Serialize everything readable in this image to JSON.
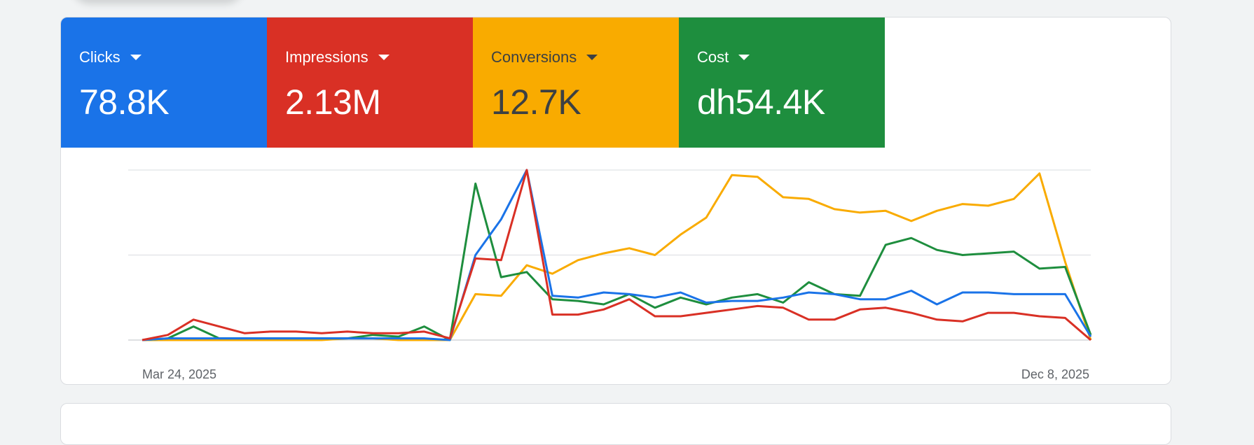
{
  "metrics": [
    {
      "label": "Clicks",
      "value": "78.8K",
      "color": "#1a73e8"
    },
    {
      "label": "Impressions",
      "value": "2.13M",
      "color": "#d93025"
    },
    {
      "label": "Conversions",
      "value": "12.7K",
      "color": "#f9ab00"
    },
    {
      "label": "Cost",
      "value": "dh54.4K",
      "color": "#1e8e3e"
    }
  ],
  "x_axis": {
    "start_label": "Mar 24, 2025",
    "end_label": "Dec 8, 2025"
  },
  "chart_data": {
    "type": "line",
    "xlabel": "",
    "ylabel": "",
    "grid": true,
    "y_scale": "normalized per series (no y-axis labels shown)",
    "x": [
      "2025-03-24",
      "2025-03-31",
      "2025-04-07",
      "2025-04-14",
      "2025-04-21",
      "2025-04-28",
      "2025-05-05",
      "2025-05-12",
      "2025-05-19",
      "2025-05-26",
      "2025-06-02",
      "2025-06-09",
      "2025-06-16",
      "2025-06-23",
      "2025-06-30",
      "2025-07-07",
      "2025-07-14",
      "2025-07-21",
      "2025-07-28",
      "2025-08-04",
      "2025-08-11",
      "2025-08-18",
      "2025-08-25",
      "2025-09-01",
      "2025-09-08",
      "2025-09-15",
      "2025-09-22",
      "2025-09-29",
      "2025-10-06",
      "2025-10-13",
      "2025-10-20",
      "2025-10-27",
      "2025-11-03",
      "2025-11-10",
      "2025-11-17",
      "2025-11-24",
      "2025-12-01",
      "2025-12-08"
    ],
    "series": [
      {
        "name": "Clicks",
        "color": "#1a73e8",
        "values": [
          0,
          1,
          1,
          1,
          1,
          1,
          1,
          1,
          1,
          1,
          1,
          1,
          0,
          50,
          71,
          100,
          26,
          25,
          28,
          27,
          25,
          28,
          22,
          23,
          23,
          25,
          28,
          27,
          24,
          24,
          29,
          21,
          28,
          28,
          27,
          27,
          27,
          2
        ]
      },
      {
        "name": "Impressions",
        "color": "#d93025",
        "values": [
          0,
          3,
          12,
          8,
          4,
          5,
          5,
          4,
          5,
          4,
          4,
          5,
          1,
          48,
          47,
          100,
          15,
          15,
          18,
          24,
          14,
          14,
          16,
          18,
          20,
          19,
          12,
          12,
          18,
          19,
          16,
          12,
          11,
          16,
          16,
          14,
          13,
          0
        ]
      },
      {
        "name": "Conversions",
        "color": "#f9ab00",
        "values": [
          0,
          0,
          0,
          0,
          0,
          0,
          0,
          0,
          1,
          1,
          0,
          0,
          0,
          27,
          26,
          44,
          39,
          47,
          51,
          54,
          50,
          62,
          72,
          97,
          96,
          84,
          83,
          77,
          75,
          76,
          70,
          76,
          80,
          79,
          83,
          98,
          46,
          0
        ]
      },
      {
        "name": "Cost",
        "color": "#1e8e3e",
        "values": [
          0,
          1,
          8,
          1,
          1,
          1,
          1,
          1,
          1,
          3,
          2,
          8,
          0,
          92,
          37,
          40,
          24,
          23,
          21,
          27,
          19,
          25,
          21,
          25,
          27,
          22,
          34,
          27,
          26,
          56,
          60,
          53,
          50,
          51,
          52,
          42,
          43,
          3
        ]
      }
    ]
  }
}
